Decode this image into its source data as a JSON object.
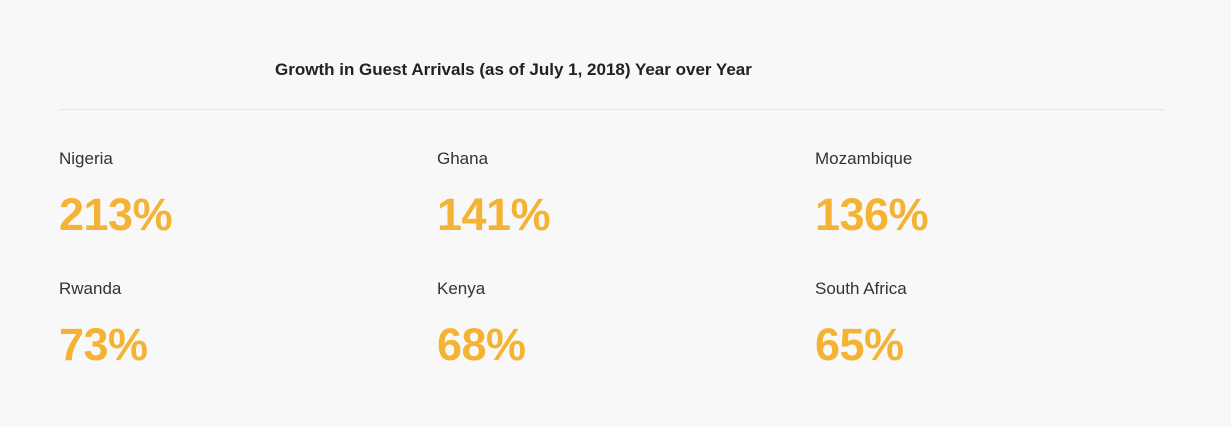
{
  "chart_data": {
    "type": "table",
    "title": "Growth in Guest Arrivals (as of July 1, 2018) Year over Year",
    "categories": [
      "Nigeria",
      "Ghana",
      "Mozambique",
      "Rwanda",
      "Kenya",
      "South Africa"
    ],
    "values": [
      213,
      141,
      136,
      73,
      68,
      65
    ],
    "value_labels": [
      "213%",
      "141%",
      "136%",
      "73%",
      "68%",
      "65%"
    ],
    "unit": "%",
    "colors": {
      "value": "#f5b335",
      "label": "#333333",
      "title": "#222222",
      "background": "#f8f8f8",
      "divider": "#e6e6e6"
    }
  }
}
